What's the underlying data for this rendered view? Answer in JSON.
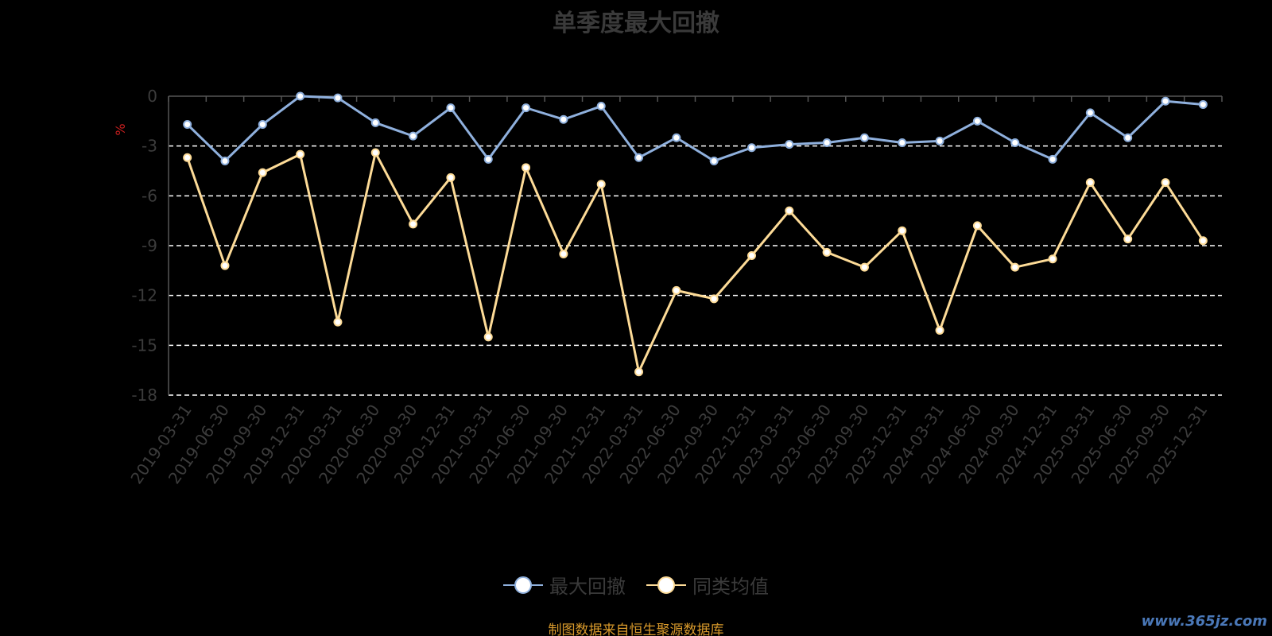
{
  "chart_data": {
    "type": "line",
    "title": "单季度最大回撤",
    "ylabel": "%",
    "ylim": [
      -18,
      0
    ],
    "yticks": [
      0,
      -3,
      -6,
      -9,
      -12,
      -15,
      -18
    ],
    "grid": true,
    "legend_position": "bottom",
    "categories": [
      "2019-03-31",
      "2019-06-30",
      "2019-09-30",
      "2019-12-31",
      "2020-03-31",
      "2020-06-30",
      "2020-09-30",
      "2020-12-31",
      "2021-03-31",
      "2021-06-30",
      "2021-09-30",
      "2021-12-31",
      "2022-03-31",
      "2022-06-30",
      "2022-09-30",
      "2022-12-31",
      "2023-03-31",
      "2023-06-30",
      "2023-09-30",
      "2023-12-31",
      "2024-03-31",
      "2024-06-30",
      "2024-09-30",
      "2024-12-31",
      "2025-03-31",
      "2025-06-30",
      "2025-09-30",
      "2025-12-31"
    ],
    "series": [
      {
        "name": "最大回撤",
        "color": "#8fb0dd",
        "values": [
          -1.7,
          -3.9,
          -1.7,
          0.0,
          -0.1,
          -1.6,
          -2.4,
          -0.7,
          -3.8,
          -0.7,
          -1.4,
          -0.6,
          -3.7,
          -2.5,
          -3.9,
          -3.1,
          -2.9,
          -2.8,
          -2.5,
          -2.8,
          -2.7,
          -1.5,
          -2.8,
          -3.8,
          -1.0,
          -2.5,
          -0.3,
          -0.5
        ]
      },
      {
        "name": "同类均值",
        "color": "#fddb97",
        "values": [
          -3.7,
          -10.2,
          -4.6,
          -3.5,
          -13.6,
          -3.4,
          -7.7,
          -4.9,
          -14.5,
          -4.3,
          -9.5,
          -5.3,
          -16.6,
          -11.7,
          -12.2,
          -9.6,
          -6.9,
          -9.4,
          -10.3,
          -8.1,
          -14.1,
          -7.8,
          -10.3,
          -9.8,
          -5.2,
          -8.6,
          -5.2,
          -8.7
        ]
      }
    ]
  },
  "footer": {
    "source_note": "制图数据来自恒生聚源数据库",
    "watermark": "www.365jz.com"
  },
  "colors": {
    "background": "#000000",
    "grid": "#ffffff",
    "axis": "#555555"
  }
}
